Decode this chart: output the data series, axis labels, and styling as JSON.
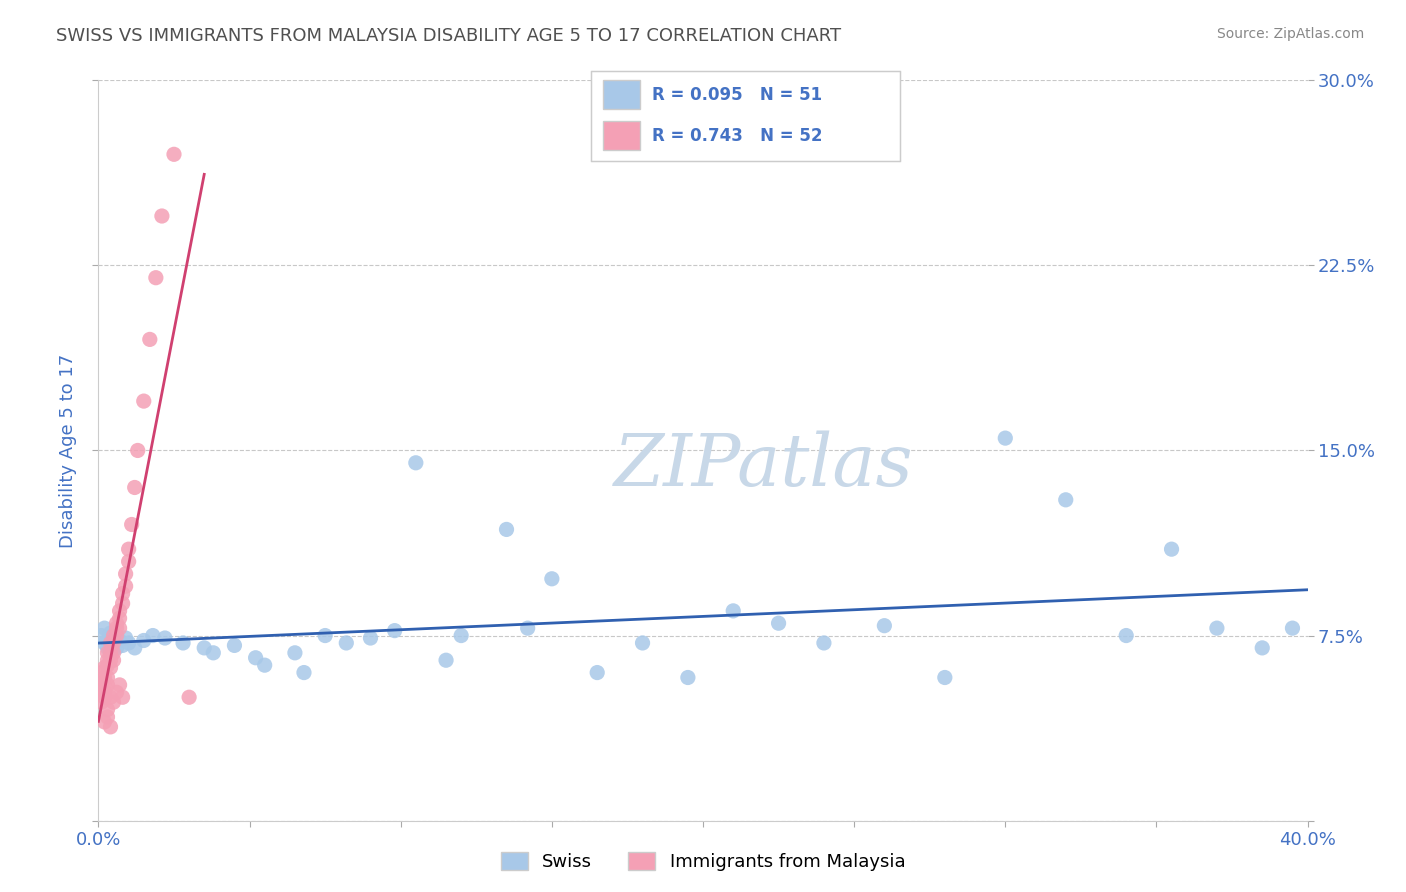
{
  "title": "SWISS VS IMMIGRANTS FROM MALAYSIA DISABILITY AGE 5 TO 17 CORRELATION CHART",
  "source": "Source: ZipAtlas.com",
  "ylabel": "Disability Age 5 to 17",
  "xlim": [
    0.0,
    0.4
  ],
  "ylim": [
    0.0,
    0.3
  ],
  "legend_R_swiss": "R = 0.095",
  "legend_N_swiss": "N = 51",
  "legend_R_malaysia": "R = 0.743",
  "legend_N_malaysia": "N = 52",
  "swiss_color": "#a8c8e8",
  "malaysia_color": "#f4a0b5",
  "swiss_line_color": "#3060b0",
  "malaysia_line_color": "#d04070",
  "axis_label_color": "#4472c4",
  "title_color": "#505050",
  "watermark_color": "#c8d8e8",
  "background_color": "#ffffff",
  "grid_color": "#c8c8c8",
  "figsize": [
    14.06,
    8.92
  ],
  "dpi": 100,
  "swiss_x": [
    0.001,
    0.002,
    0.002,
    0.003,
    0.003,
    0.004,
    0.004,
    0.005,
    0.005,
    0.006,
    0.007,
    0.008,
    0.009,
    0.01,
    0.012,
    0.015,
    0.018,
    0.022,
    0.028,
    0.035,
    0.045,
    0.055,
    0.065,
    0.075,
    0.09,
    0.105,
    0.12,
    0.135,
    0.15,
    0.165,
    0.18,
    0.195,
    0.21,
    0.225,
    0.24,
    0.26,
    0.28,
    0.3,
    0.32,
    0.34,
    0.355,
    0.37,
    0.385,
    0.395,
    0.038,
    0.052,
    0.068,
    0.082,
    0.098,
    0.115,
    0.142
  ],
  "swiss_y": [
    0.075,
    0.072,
    0.078,
    0.07,
    0.073,
    0.068,
    0.076,
    0.072,
    0.075,
    0.07,
    0.073,
    0.071,
    0.074,
    0.072,
    0.07,
    0.073,
    0.075,
    0.074,
    0.072,
    0.07,
    0.071,
    0.063,
    0.068,
    0.075,
    0.074,
    0.145,
    0.075,
    0.118,
    0.098,
    0.06,
    0.072,
    0.058,
    0.085,
    0.08,
    0.072,
    0.079,
    0.058,
    0.155,
    0.13,
    0.075,
    0.11,
    0.078,
    0.07,
    0.078,
    0.068,
    0.066,
    0.06,
    0.072,
    0.077,
    0.065,
    0.078
  ],
  "malaysia_x": [
    0.001,
    0.001,
    0.001,
    0.002,
    0.002,
    0.002,
    0.002,
    0.003,
    0.003,
    0.003,
    0.003,
    0.003,
    0.004,
    0.004,
    0.004,
    0.004,
    0.005,
    0.005,
    0.005,
    0.005,
    0.006,
    0.006,
    0.006,
    0.007,
    0.007,
    0.007,
    0.008,
    0.008,
    0.009,
    0.009,
    0.01,
    0.01,
    0.011,
    0.012,
    0.013,
    0.015,
    0.017,
    0.019,
    0.021,
    0.025,
    0.03,
    0.001,
    0.002,
    0.003,
    0.004,
    0.005,
    0.006,
    0.007,
    0.008,
    0.002,
    0.003,
    0.004
  ],
  "malaysia_y": [
    0.06,
    0.055,
    0.052,
    0.058,
    0.062,
    0.055,
    0.05,
    0.068,
    0.065,
    0.063,
    0.058,
    0.055,
    0.072,
    0.068,
    0.065,
    0.062,
    0.075,
    0.072,
    0.068,
    0.065,
    0.08,
    0.078,
    0.075,
    0.085,
    0.082,
    0.078,
    0.092,
    0.088,
    0.1,
    0.095,
    0.11,
    0.105,
    0.12,
    0.135,
    0.15,
    0.17,
    0.195,
    0.22,
    0.245,
    0.27,
    0.05,
    0.048,
    0.052,
    0.045,
    0.05,
    0.048,
    0.052,
    0.055,
    0.05,
    0.04,
    0.042,
    0.038
  ]
}
